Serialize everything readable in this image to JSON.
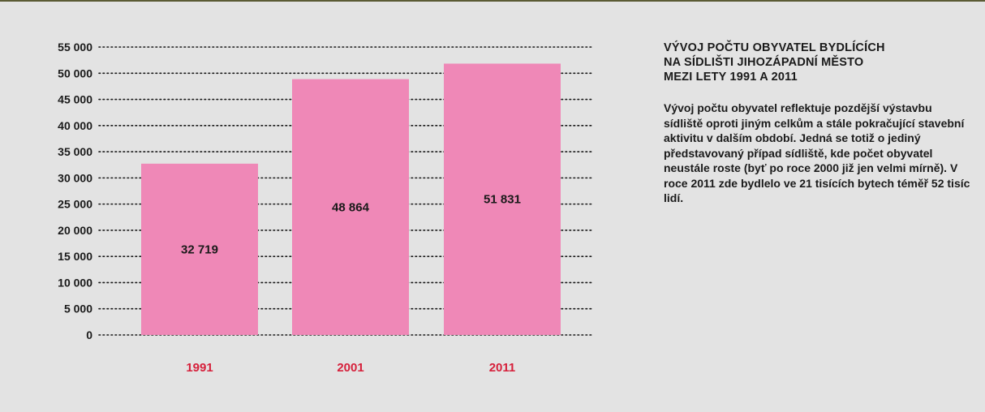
{
  "header": {
    "title_lines": [
      "VÝVOJ POČTU OBYVATEL BYDLÍCÍCH",
      "NA SÍDLIŠTI JIHOZÁPADNÍ MĚSTO",
      "MEZI LETY 1991 A 2011"
    ]
  },
  "description": "Vývoj počtu obyvatel reflektuje pozdější výstavbu sídliště oproti jiným celkům a stále pokračující stavební aktivitu v dalším období. Jedná se totiž o jediný představovaný případ sídliště, kde počet obyvatel neustále roste (byť po roce 2000 již jen velmi mírně). V roce 2011 zde bydlelo ve 21 tisících bytech téměř 52 tisíc lidí.",
  "colors": {
    "bar": "#ef88b7",
    "year_label": "#d6203b",
    "grid_dots": "#1a1a1a",
    "background": "#e3e3e3"
  },
  "chart_data": {
    "type": "bar",
    "categories": [
      "1991",
      "2001",
      "2011"
    ],
    "values": [
      32719,
      48864,
      51831
    ],
    "value_labels": [
      "32 719",
      "48 864",
      "51 831"
    ],
    "ylim": [
      0,
      55000
    ],
    "yticks": [
      0,
      5000,
      10000,
      15000,
      20000,
      25000,
      30000,
      35000,
      40000,
      45000,
      50000,
      55000
    ],
    "ytick_labels": [
      "0",
      "5 000",
      "10 000",
      "15 000",
      "20 000",
      "25 000",
      "30 000",
      "35 000",
      "40 000",
      "45 000",
      "50 000",
      "55 000"
    ],
    "grid": true,
    "title": "",
    "xlabel": "",
    "ylabel": ""
  }
}
